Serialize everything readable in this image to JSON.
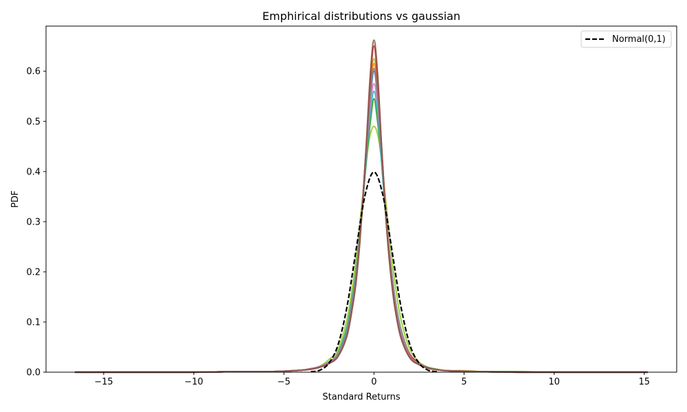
{
  "chart_data": {
    "type": "line",
    "title": "Emphirical distributions vs gaussian",
    "xlabel": "Standard Returns",
    "ylabel": "PDF",
    "xlim": [
      -18.2,
      16.8
    ],
    "ylim": [
      0,
      0.69
    ],
    "grid": false,
    "legend_position": "top-right",
    "x_ticks": [
      -15,
      -10,
      -5,
      0,
      5,
      10,
      15
    ],
    "x_tick_labels": [
      "−15",
      "−10",
      "−5",
      "0",
      "5",
      "10",
      "15"
    ],
    "y_ticks": [
      0.0,
      0.1,
      0.2,
      0.3,
      0.4,
      0.5,
      0.6
    ],
    "y_tick_labels": [
      "0.0",
      "0.1",
      "0.2",
      "0.3",
      "0.4",
      "0.5",
      "0.6"
    ],
    "reference": {
      "name": "Normal(0,1)",
      "color": "#000000",
      "style": "dashed",
      "x": [
        -3.5,
        -3.0,
        -2.5,
        -2.0,
        -1.5,
        -1.0,
        -0.5,
        0.0,
        0.5,
        1.0,
        1.5,
        2.0,
        2.5,
        3.0,
        3.5
      ],
      "y": [
        0.001,
        0.004,
        0.018,
        0.054,
        0.13,
        0.242,
        0.352,
        0.399,
        0.352,
        0.242,
        0.13,
        0.054,
        0.018,
        0.004,
        0.001
      ]
    },
    "empirical_x": [
      -16.6,
      -14,
      -10,
      -8,
      -6,
      -5,
      -4,
      -3.5,
      -3,
      -2.5,
      -2,
      -1.5,
      -1.2,
      -1,
      -0.8,
      -0.6,
      -0.4,
      -0.2,
      0,
      0.2,
      0.4,
      0.6,
      0.8,
      1,
      1.2,
      1.5,
      2,
      2.5,
      3,
      3.5,
      4,
      5,
      6,
      8,
      10,
      12,
      15.2
    ],
    "series": [
      {
        "color": "#9acd32",
        "values": [
          0.0,
          0.0,
          0.0,
          0.001,
          0.001,
          0.002,
          0.004,
          0.007,
          0.012,
          0.025,
          0.045,
          0.105,
          0.17,
          0.225,
          0.29,
          0.36,
          0.43,
          0.475,
          0.49,
          0.475,
          0.43,
          0.36,
          0.29,
          0.225,
          0.17,
          0.105,
          0.045,
          0.02,
          0.01,
          0.006,
          0.003,
          0.002,
          0.001,
          0.001,
          0.0,
          0.0,
          0.0
        ]
      },
      {
        "color": "#2ca02c",
        "values": [
          0.0,
          0.0,
          0.0,
          0.001,
          0.001,
          0.002,
          0.004,
          0.006,
          0.01,
          0.02,
          0.038,
          0.09,
          0.15,
          0.2,
          0.27,
          0.35,
          0.43,
          0.5,
          0.545,
          0.5,
          0.43,
          0.34,
          0.26,
          0.195,
          0.14,
          0.085,
          0.035,
          0.018,
          0.009,
          0.005,
          0.003,
          0.002,
          0.001,
          0.001,
          0.0,
          0.0,
          0.0
        ]
      },
      {
        "color": "#17becf",
        "values": [
          0.0,
          0.0,
          0.0,
          0.001,
          0.001,
          0.002,
          0.004,
          0.006,
          0.01,
          0.019,
          0.036,
          0.085,
          0.145,
          0.195,
          0.265,
          0.35,
          0.44,
          0.52,
          0.56,
          0.52,
          0.43,
          0.335,
          0.255,
          0.19,
          0.135,
          0.08,
          0.033,
          0.017,
          0.009,
          0.005,
          0.003,
          0.002,
          0.001,
          0.0,
          0.0,
          0.0,
          0.0
        ]
      },
      {
        "color": "#4169e1",
        "values": [
          0.0,
          0.0,
          0.0,
          0.001,
          0.001,
          0.002,
          0.004,
          0.007,
          0.011,
          0.02,
          0.035,
          0.08,
          0.14,
          0.19,
          0.265,
          0.355,
          0.455,
          0.55,
          0.6,
          0.55,
          0.45,
          0.345,
          0.255,
          0.185,
          0.13,
          0.075,
          0.03,
          0.016,
          0.009,
          0.005,
          0.003,
          0.002,
          0.001,
          0.0,
          0.0,
          0.0,
          0.0
        ]
      },
      {
        "color": "#bcbd22",
        "values": [
          0.0,
          0.0,
          0.0,
          0.001,
          0.001,
          0.002,
          0.004,
          0.006,
          0.01,
          0.018,
          0.033,
          0.078,
          0.135,
          0.185,
          0.26,
          0.355,
          0.465,
          0.57,
          0.625,
          0.57,
          0.46,
          0.345,
          0.25,
          0.18,
          0.125,
          0.072,
          0.03,
          0.016,
          0.009,
          0.005,
          0.003,
          0.003,
          0.001,
          0.0,
          0.0,
          0.0,
          0.0
        ]
      },
      {
        "color": "#ff7f0e",
        "values": [
          0.0,
          0.0,
          0.0,
          0.001,
          0.001,
          0.002,
          0.004,
          0.006,
          0.01,
          0.018,
          0.032,
          0.075,
          0.13,
          0.18,
          0.255,
          0.35,
          0.46,
          0.56,
          0.615,
          0.56,
          0.455,
          0.34,
          0.245,
          0.175,
          0.122,
          0.07,
          0.029,
          0.015,
          0.008,
          0.005,
          0.003,
          0.002,
          0.001,
          0.0,
          0.0,
          0.0,
          0.0
        ]
      },
      {
        "color": "#d62728",
        "values": [
          0.0,
          0.0,
          0.0,
          0.001,
          0.001,
          0.002,
          0.004,
          0.007,
          0.01,
          0.018,
          0.034,
          0.078,
          0.135,
          0.185,
          0.26,
          0.355,
          0.465,
          0.585,
          0.65,
          0.585,
          0.46,
          0.345,
          0.25,
          0.18,
          0.126,
          0.075,
          0.035,
          0.018,
          0.009,
          0.005,
          0.003,
          0.002,
          0.001,
          0.0,
          0.0,
          0.0,
          0.0
        ]
      },
      {
        "color": "#e377c2",
        "values": [
          0.0,
          0.0,
          0.0,
          0.001,
          0.001,
          0.002,
          0.004,
          0.007,
          0.011,
          0.019,
          0.035,
          0.08,
          0.14,
          0.19,
          0.265,
          0.355,
          0.45,
          0.535,
          0.575,
          0.535,
          0.445,
          0.345,
          0.26,
          0.19,
          0.135,
          0.08,
          0.032,
          0.017,
          0.009,
          0.005,
          0.003,
          0.002,
          0.001,
          0.0,
          0.0,
          0.0,
          0.0
        ]
      },
      {
        "color": "#7f7f7f",
        "values": [
          0.0,
          0.0,
          0.0,
          0.001,
          0.001,
          0.002,
          0.004,
          0.006,
          0.01,
          0.018,
          0.033,
          0.078,
          0.136,
          0.186,
          0.26,
          0.352,
          0.455,
          0.555,
          0.605,
          0.555,
          0.45,
          0.34,
          0.25,
          0.182,
          0.128,
          0.073,
          0.03,
          0.016,
          0.009,
          0.005,
          0.003,
          0.002,
          0.001,
          0.0,
          0.0,
          0.0,
          0.0
        ]
      },
      {
        "color": "#8c564b",
        "values": [
          0.0,
          0.0,
          0.0,
          0.001,
          0.001,
          0.002,
          0.004,
          0.006,
          0.01,
          0.017,
          0.031,
          0.072,
          0.128,
          0.178,
          0.252,
          0.35,
          0.47,
          0.595,
          0.662,
          0.595,
          0.465,
          0.34,
          0.245,
          0.172,
          0.12,
          0.068,
          0.028,
          0.015,
          0.008,
          0.005,
          0.003,
          0.002,
          0.001,
          0.0,
          0.0,
          0.0,
          0.0
        ]
      }
    ]
  }
}
